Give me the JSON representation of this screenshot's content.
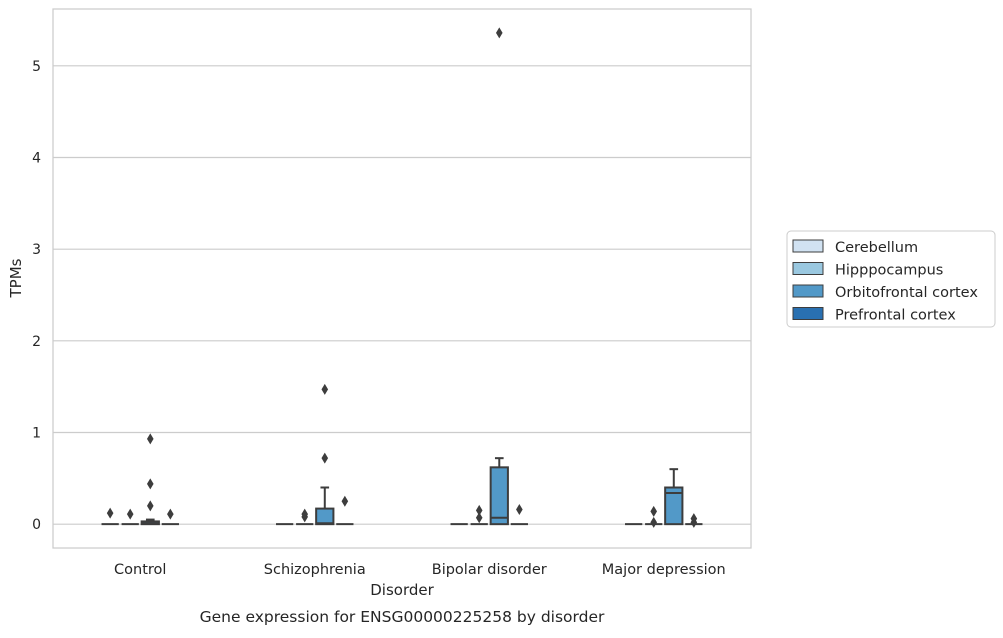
{
  "chart_data": {
    "type": "box",
    "title": "",
    "xlabel": "Disorder",
    "ylabel": "TPMs",
    "caption": "Gene expression for ENSG00000225258 by disorder",
    "categories": [
      "Control",
      "Schizophrenia",
      "Bipolar disorder",
      "Major depression"
    ],
    "ylim": [
      -0.26,
      5.62
    ],
    "yticks": [
      "0",
      "1",
      "2",
      "3",
      "4",
      "5"
    ],
    "grid": true,
    "legend_position": "right",
    "series": [
      {
        "name": "Cerebellum",
        "color": "#d1e2f2",
        "boxes": [
          {
            "q1": 0,
            "median": 0,
            "q3": 0,
            "whislo": 0,
            "whishi": 0,
            "fliers": [
              0.12
            ]
          },
          {
            "q1": 0,
            "median": 0,
            "q3": 0,
            "whislo": 0,
            "whishi": 0,
            "fliers": []
          },
          {
            "q1": 0,
            "median": 0,
            "q3": 0,
            "whislo": 0,
            "whishi": 0,
            "fliers": []
          },
          {
            "q1": 0,
            "median": 0,
            "q3": 0,
            "whislo": 0,
            "whishi": 0,
            "fliers": []
          }
        ]
      },
      {
        "name": "Hipppocampus",
        "color": "#9ac8e0",
        "boxes": [
          {
            "q1": 0,
            "median": 0,
            "q3": 0,
            "whislo": 0,
            "whishi": 0,
            "fliers": [
              0.11
            ]
          },
          {
            "q1": 0,
            "median": 0,
            "q3": 0,
            "whislo": 0,
            "whishi": 0,
            "fliers": [
              0.08,
              0.11
            ]
          },
          {
            "q1": 0,
            "median": 0,
            "q3": 0,
            "whislo": 0,
            "whishi": 0,
            "fliers": [
              0.07,
              0.15
            ]
          },
          {
            "q1": 0,
            "median": 0,
            "q3": 0,
            "whislo": 0,
            "whishi": 0,
            "fliers": [
              0.02,
              0.14
            ]
          }
        ]
      },
      {
        "name": "Orbitofrontal cortex",
        "color": "#5299c8",
        "boxes": [
          {
            "q1": 0,
            "median": 0.01,
            "q3": 0.03,
            "whislo": 0,
            "whishi": 0.05,
            "fliers": [
              0.2,
              0.44,
              0.93
            ]
          },
          {
            "q1": 0,
            "median": 0.01,
            "q3": 0.17,
            "whislo": 0,
            "whishi": 0.4,
            "fliers": [
              0.72,
              1.47
            ]
          },
          {
            "q1": 0,
            "median": 0.07,
            "q3": 0.62,
            "whislo": 0,
            "whishi": 0.72,
            "fliers": [
              5.36
            ]
          },
          {
            "q1": 0,
            "median": 0.34,
            "q3": 0.4,
            "whislo": 0,
            "whishi": 0.6,
            "fliers": []
          }
        ]
      },
      {
        "name": "Prefrontal cortex",
        "color": "#2970b1",
        "boxes": [
          {
            "q1": 0,
            "median": 0,
            "q3": 0,
            "whislo": 0,
            "whishi": 0,
            "fliers": [
              0.11
            ]
          },
          {
            "q1": 0,
            "median": 0,
            "q3": 0,
            "whislo": 0,
            "whishi": 0,
            "fliers": [
              0.25
            ]
          },
          {
            "q1": 0,
            "median": 0,
            "q3": 0,
            "whislo": 0,
            "whishi": 0,
            "fliers": [
              0.16
            ]
          },
          {
            "q1": 0,
            "median": 0,
            "q3": 0,
            "whislo": 0,
            "whishi": 0,
            "fliers": [
              0.02,
              0.06
            ]
          }
        ]
      }
    ]
  }
}
